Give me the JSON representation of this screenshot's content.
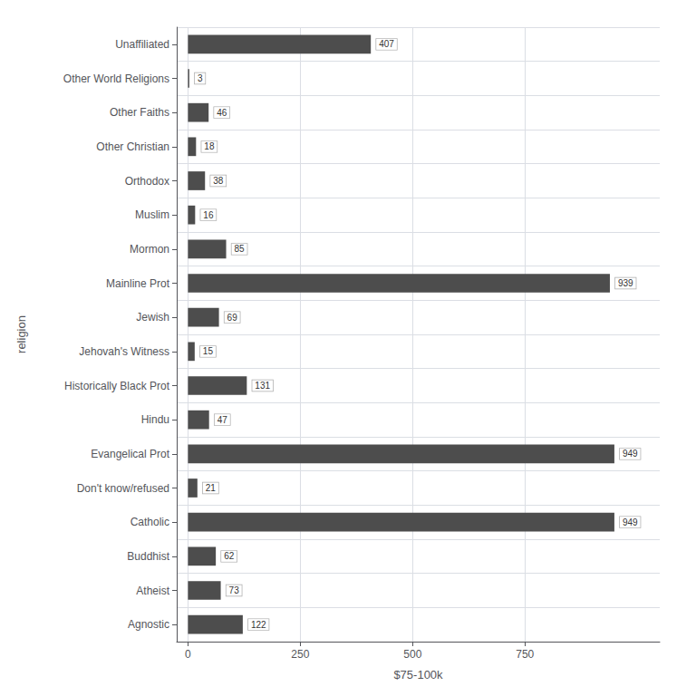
{
  "chart_data": {
    "type": "bar",
    "orientation": "horizontal",
    "categories": [
      "Agnostic",
      "Atheist",
      "Buddhist",
      "Catholic",
      "Don't know/refused",
      "Evangelical Prot",
      "Hindu",
      "Historically Black Prot",
      "Jehovah's Witness",
      "Jewish",
      "Mainline Prot",
      "Mormon",
      "Muslim",
      "Orthodox",
      "Other Christian",
      "Other Faiths",
      "Other World Religions",
      "Unaffiliated"
    ],
    "values": [
      122,
      73,
      62,
      949,
      21,
      949,
      47,
      131,
      15,
      69,
      939,
      85,
      16,
      38,
      18,
      46,
      3,
      407
    ],
    "color": "#4d4d4d",
    "xlabel": "$75-100k",
    "ylabel": "religion",
    "xlim": [
      -25,
      1050
    ],
    "xticks": [
      0,
      250,
      500,
      750
    ],
    "grid": true,
    "data_labels": true
  }
}
